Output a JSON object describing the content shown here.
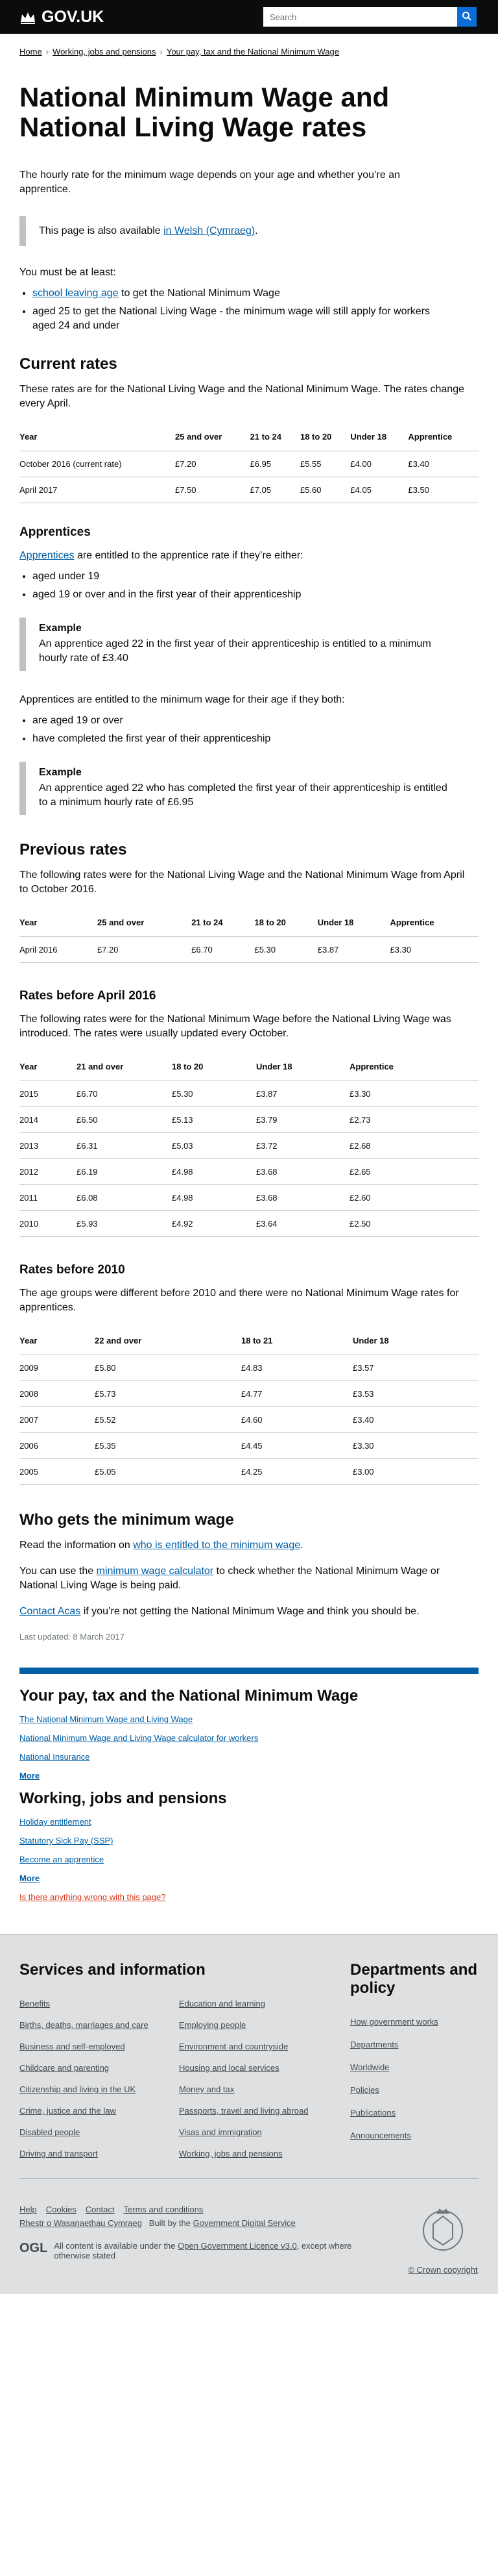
{
  "header": {
    "logo_text": "GOV.UK",
    "search_placeholder": "Search"
  },
  "breadcrumbs": [
    {
      "label": "Home"
    },
    {
      "label": "Working, jobs and pensions"
    },
    {
      "label": "Your pay, tax and the National Minimum Wage"
    }
  ],
  "title": "National Minimum Wage and National Living Wage rates",
  "lead": "The hourly rate for the minimum wage depends on your age and whether you’re an apprentice.",
  "welsh_callout": {
    "prefix": "This page is also available ",
    "link": "in Welsh (Cymraeg)",
    "suffix": "."
  },
  "must_be": {
    "intro": "You must be at least:",
    "items": [
      {
        "link": "school leaving age",
        "text": " to get the National Minimum Wage"
      },
      {
        "link": "",
        "text": "aged 25 to get the National Living Wage - the minimum wage will still apply for workers aged 24 and under"
      }
    ]
  },
  "current_rates": {
    "heading": "Current rates",
    "intro": "These rates are for the National Living Wage and the National Minimum Wage. The rates change every April.",
    "headers": [
      "Year",
      "25 and over",
      "21 to 24",
      "18 to 20",
      "Under 18",
      "Apprentice"
    ],
    "rows": [
      [
        "October 2016 (current rate)",
        "£7.20",
        "£6.95",
        "£5.55",
        "£4.00",
        "£3.40"
      ],
      [
        "April 2017",
        "£7.50",
        "£7.05",
        "£5.60",
        "£4.05",
        "£3.50"
      ]
    ]
  },
  "apprentices": {
    "heading": "Apprentices",
    "intro_link": "Apprentices",
    "intro_text": " are entitled to the apprentice rate if they’re either:",
    "items": [
      "aged under 19",
      "aged 19 or over and in the first year of their apprenticeship"
    ],
    "example1": {
      "title": "Example",
      "text": "An apprentice aged 22 in the first year of their apprenticeship is entitled to a minimum hourly rate of £3.40"
    },
    "intro2": "Apprentices are entitled to the minimum wage for their age if they both:",
    "items2": [
      "are aged 19 or over",
      "have completed the first year of their apprenticeship"
    ],
    "example2": {
      "title": "Example",
      "text": "An apprentice aged 22 who has completed the first year of their apprenticeship is entitled to a minimum hourly rate of £6.95"
    }
  },
  "previous_rates": {
    "heading": "Previous rates",
    "intro": "The following rates were for the National Living Wage and the National Minimum Wage from April to October 2016.",
    "headers": [
      "Year",
      "25 and over",
      "21 to 24",
      "18 to 20",
      "Under 18",
      "Apprentice"
    ],
    "rows": [
      [
        "April 2016",
        "£7.20",
        "£6.70",
        "£5.30",
        "£3.87",
        "£3.30"
      ]
    ]
  },
  "rates_before_2016": {
    "heading": "Rates before April 2016",
    "intro": "The following rates were for the National Minimum Wage before the National Living Wage was introduced. The rates were usually updated every October.",
    "headers": [
      "Year",
      "21 and over",
      "18 to 20",
      "Under 18",
      "Apprentice"
    ],
    "rows": [
      [
        "2015",
        "£6.70",
        "£5.30",
        "£3.87",
        "£3.30"
      ],
      [
        "2014",
        "£6.50",
        "£5.13",
        "£3.79",
        "£2.73"
      ],
      [
        "2013",
        "£6.31",
        "£5.03",
        "£3.72",
        "£2.68"
      ],
      [
        "2012",
        "£6.19",
        "£4.98",
        "£3.68",
        "£2.65"
      ],
      [
        "2011",
        "£6.08",
        "£4.98",
        "£3.68",
        "£2.60"
      ],
      [
        "2010",
        "£5.93",
        "£4.92",
        "£3.64",
        "£2.50"
      ]
    ]
  },
  "rates_before_2010": {
    "heading": "Rates before 2010",
    "intro": "The age groups were different before 2010 and there were no National Minimum Wage rates for apprentices.",
    "headers": [
      "Year",
      "22 and over",
      "18 to 21",
      "Under 18"
    ],
    "rows": [
      [
        "2009",
        "£5.80",
        "£4.83",
        "£3.57"
      ],
      [
        "2008",
        "£5.73",
        "£4.77",
        "£3.53"
      ],
      [
        "2007",
        "£5.52",
        "£4.60",
        "£3.40"
      ],
      [
        "2006",
        "£5.35",
        "£4.45",
        "£3.30"
      ],
      [
        "2005",
        "£5.05",
        "£4.25",
        "£3.00"
      ]
    ]
  },
  "who_gets": {
    "heading": "Who gets the minimum wage",
    "p1_prefix": "Read the information on ",
    "p1_link": "who is entitled to the minimum wage",
    "p1_suffix": ".",
    "p2_prefix": "You can use the ",
    "p2_link": "minimum wage calculator",
    "p2_suffix": " to check whether the National Minimum Wage or National Living Wage is being paid.",
    "p3_link": "Contact Acas",
    "p3_suffix": " if you’re not getting the National Minimum Wage and think you should be.",
    "updated": "Last updated: 8 March 2017"
  },
  "related": [
    {
      "heading": "Your pay, tax and the National Minimum Wage",
      "links": [
        "The National Minimum Wage and Living Wage",
        "National Minimum Wage and Living Wage calculator for workers",
        "National Insurance"
      ],
      "more": "More"
    },
    {
      "heading": "Working, jobs and pensions",
      "links": [
        "Holiday entitlement",
        "Statutory Sick Pay (SSP)",
        "Become an apprentice"
      ],
      "more": "More"
    }
  ],
  "feedback_link": "Is there anything wrong with this page?",
  "footer": {
    "services_heading": "Services and information",
    "services": [
      "Benefits",
      "Education and learning",
      "Births, deaths, marriages and care",
      "Employing people",
      "Business and self-employed",
      "Environment and countryside",
      "Childcare and parenting",
      "Housing and local services",
      "Citizenship and living in the UK",
      "Money and tax",
      "Crime, justice and the law",
      "Passports, travel and living abroad",
      "Disabled people",
      "Visas and immigration",
      "Driving and transport",
      "Working, jobs and pensions"
    ],
    "departments_heading": "Departments and policy",
    "departments": [
      "How government works",
      "Departments",
      "Worldwide",
      "Policies",
      "Publications",
      "Announcements"
    ],
    "meta_links": [
      "Help",
      "Cookies",
      "Contact",
      "Terms and conditions",
      "Rhestr o Wasanaethau Cymraeg"
    ],
    "built_by_prefix": "Built by the ",
    "built_by_link": "Government Digital Service",
    "ogl": "OGL",
    "licence_prefix": "All content is available under the ",
    "licence_link": "Open Government Licence v3.0",
    "licence_suffix": ", except where otherwise stated",
    "copyright": "© Crown copyright"
  }
}
